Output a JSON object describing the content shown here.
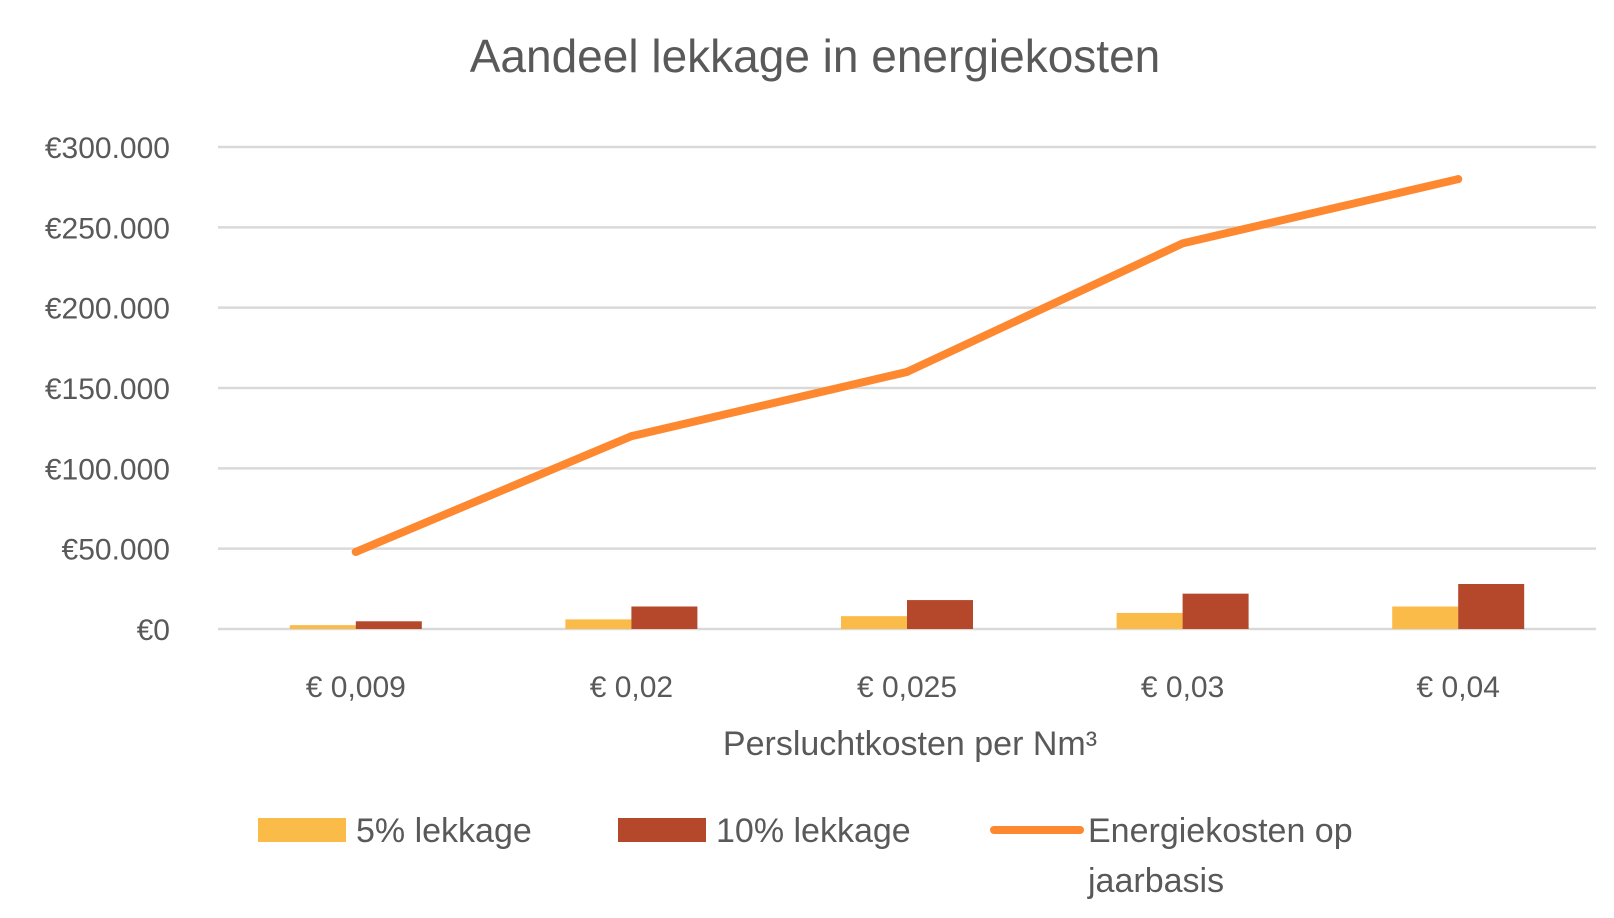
{
  "chart_data": {
    "type": "bar",
    "title": "Aandeel lekkage in energiekosten",
    "xlabel": "Persluchtkosten per Nm³",
    "ylabel": "",
    "categories": [
      "€ 0,009",
      "€ 0,02",
      "€ 0,025",
      "€ 0,03",
      "€ 0,04"
    ],
    "ylim": [
      0,
      300000
    ],
    "yticks": [
      0,
      50000,
      100000,
      150000,
      200000,
      250000,
      300000
    ],
    "ytick_labels": [
      "€0",
      "€50.000",
      "€100.000",
      "€150.000",
      "€200.000",
      "€250.000",
      "€300.000"
    ],
    "grid": true,
    "legend_position": "bottom",
    "series": [
      {
        "name": "5% lekkage",
        "kind": "bar",
        "color": "#FBBB48",
        "values": [
          2400,
          6000,
          8000,
          10000,
          14000
        ]
      },
      {
        "name": "10% lekkage",
        "kind": "bar",
        "color": "#B5472A",
        "values": [
          4800,
          14000,
          18000,
          22000,
          28000
        ]
      },
      {
        "name": "Energiekosten op jaarbasis",
        "name_lines": [
          "Energiekosten op",
          "jaarbasis"
        ],
        "kind": "line",
        "color": "#FD8830",
        "values": [
          48000,
          120000,
          160000,
          240000,
          280000
        ]
      }
    ]
  }
}
